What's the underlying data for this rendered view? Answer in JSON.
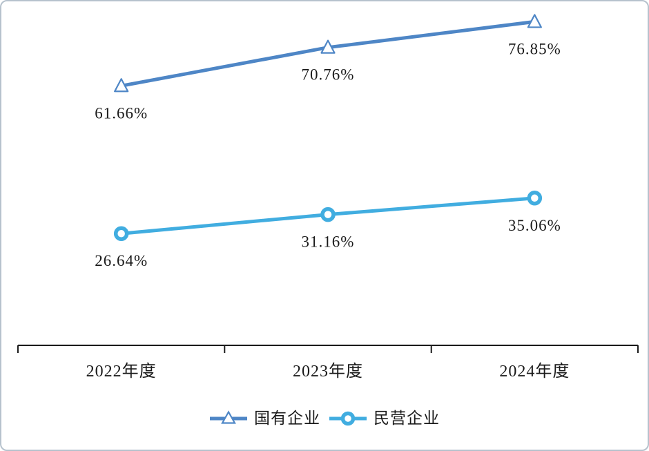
{
  "frame": {
    "background": "#ffffff",
    "border_color": "#b6c2cd"
  },
  "chart_data": {
    "type": "line",
    "categories": [
      "2022年度",
      "2023年度",
      "2024年度"
    ],
    "series": [
      {
        "name": "国有企业",
        "marker": "triangle",
        "color": "#4E86C6",
        "values": [
          61.66,
          70.76,
          76.85
        ],
        "data_labels": [
          "61.66%",
          "70.76%",
          "76.85%"
        ]
      },
      {
        "name": "民营企业",
        "marker": "circle",
        "color": "#41ADE0",
        "values": [
          26.64,
          31.16,
          35.06
        ],
        "data_labels": [
          "26.64%",
          "31.16%",
          "35.06%"
        ]
      }
    ],
    "title": "",
    "xlabel": "",
    "ylabel": "",
    "ylim": [
      0,
      82
    ],
    "grid": false,
    "legend_position": "bottom",
    "data_labels_shown": true,
    "axis_color": "#1a1a1a",
    "text_color": "#1a1a1a"
  }
}
